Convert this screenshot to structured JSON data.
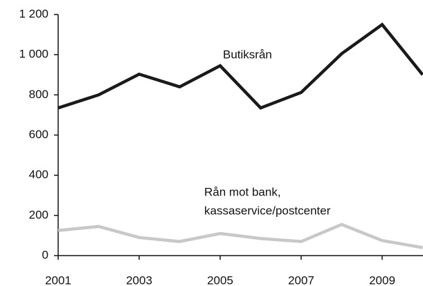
{
  "chart_data": {
    "type": "line",
    "x": [
      2001,
      2002,
      2003,
      2004,
      2005,
      2006,
      2007,
      2008,
      2009,
      2010
    ],
    "series": [
      {
        "name": "Butiksrån",
        "color": "#1a1a1a",
        "values": [
          735,
          800,
          903,
          840,
          945,
          735,
          812,
          1005,
          1150,
          900
        ]
      },
      {
        "name": "Rån mot bank, kassaservice/postcenter",
        "color": "#c8c8c8",
        "values": [
          125,
          145,
          90,
          70,
          110,
          85,
          70,
          155,
          75,
          40
        ]
      }
    ],
    "annotations": [
      "Butiksrån",
      "Rån mot bank,",
      "kassaservice/postcenter"
    ],
    "xlim": [
      2001,
      2010
    ],
    "xticks": [
      2001,
      2003,
      2005,
      2007,
      2009
    ],
    "ylim": [
      0,
      1200
    ],
    "yticks": [
      0,
      200,
      400,
      600,
      800,
      {
        "value": 1000,
        "label": "1 000"
      },
      {
        "value": 1200,
        "label": "1 200"
      }
    ]
  }
}
